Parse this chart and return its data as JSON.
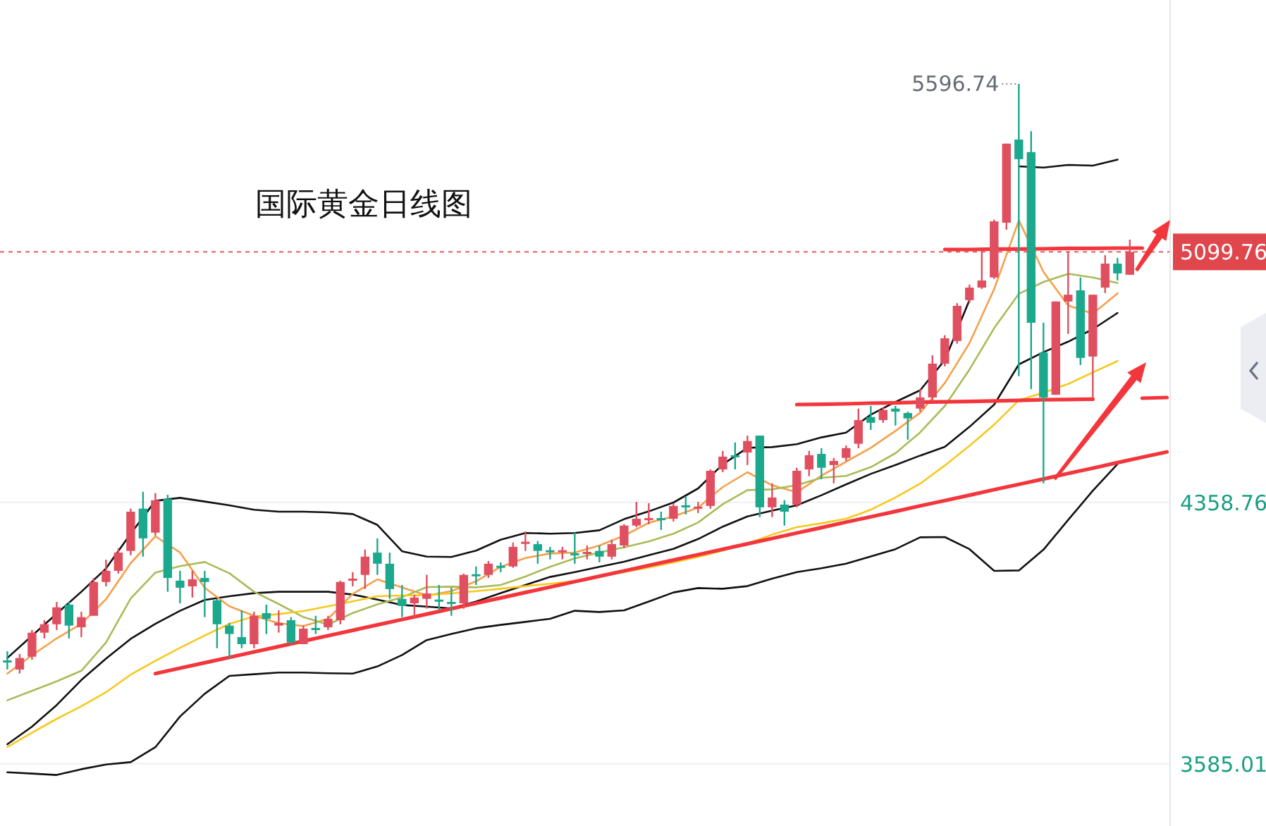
{
  "chart_data": [
    {
      "type": "candlestick",
      "title": "国际黄金日线图",
      "ylim": [
        3401,
        5845
      ],
      "yticks": [
        3585.01,
        4358.76
      ],
      "tick_labels": "y",
      "grid": "y",
      "categories": [
        null,
        null,
        null,
        null,
        null,
        null,
        null,
        null,
        null,
        null,
        null,
        null,
        null,
        null,
        null,
        null,
        null,
        null,
        null,
        null,
        null,
        null,
        null,
        null,
        null,
        null,
        null,
        null,
        null,
        null,
        null,
        null,
        null,
        null,
        null,
        null,
        null,
        null,
        null,
        null,
        null,
        null,
        null,
        null,
        null,
        null,
        null,
        null,
        null,
        null,
        null,
        null,
        null,
        null,
        null,
        null,
        null,
        null,
        null,
        null,
        null,
        null,
        null,
        null,
        null,
        null,
        null,
        null,
        null,
        null,
        null,
        null,
        null,
        null,
        null,
        null,
        null,
        null,
        null,
        null,
        null,
        null,
        null,
        null,
        null,
        null,
        null,
        null,
        null,
        null,
        null,
        null
      ],
      "ohlc": [
        [
          3891,
          3918,
          3864,
          3887
        ],
        [
          3864,
          3910,
          3852,
          3898
        ],
        [
          3902,
          3981,
          3893,
          3973
        ],
        [
          3973,
          4010,
          3956,
          3998
        ],
        [
          3998,
          4064,
          3981,
          4048
        ],
        [
          4056,
          4064,
          3956,
          3994
        ],
        [
          3989,
          4035,
          3960,
          4019
        ],
        [
          4023,
          4135,
          4023,
          4123
        ],
        [
          4123,
          4189,
          4110,
          4156
        ],
        [
          4156,
          4223,
          4148,
          4210
        ],
        [
          4215,
          4340,
          4202,
          4331
        ],
        [
          4340,
          4390,
          4198,
          4252
        ],
        [
          4269,
          4386,
          4260,
          4365
        ],
        [
          4369,
          4381,
          4094,
          4135
        ],
        [
          4127,
          4156,
          4060,
          4106
        ],
        [
          4110,
          4156,
          4077,
          4131
        ],
        [
          4135,
          4156,
          4019,
          4123
        ],
        [
          4069,
          4073,
          3927,
          3998
        ],
        [
          3994,
          4002,
          3898,
          3969
        ],
        [
          3960,
          4039,
          3927,
          3939
        ],
        [
          3939,
          4035,
          3927,
          4023
        ],
        [
          4031,
          4056,
          3969,
          4014
        ],
        [
          3994,
          4039,
          3973,
          4002
        ],
        [
          4010,
          4019,
          3939,
          3944
        ],
        [
          3939,
          3994,
          3939,
          3985
        ],
        [
          3987,
          4023,
          3969,
          3983
        ],
        [
          3989,
          4023,
          3981,
          4014
        ],
        [
          4010,
          4127,
          3998,
          4123
        ],
        [
          4129,
          4152,
          4110,
          4133
        ],
        [
          4144,
          4219,
          4102,
          4198
        ],
        [
          4210,
          4252,
          4144,
          4177
        ],
        [
          4177,
          4210,
          4073,
          4102
        ],
        [
          4073,
          4114,
          4019,
          4052
        ],
        [
          4060,
          4085,
          4019,
          4077
        ],
        [
          4073,
          4144,
          4044,
          4089
        ],
        [
          4071,
          4114,
          4039,
          4067
        ],
        [
          4064,
          4106,
          4023,
          4060
        ],
        [
          4060,
          4148,
          4044,
          4144
        ],
        [
          4146,
          4169,
          4114,
          4142
        ],
        [
          4144,
          4185,
          4135,
          4177
        ],
        [
          4171,
          4181,
          4152,
          4167
        ],
        [
          4169,
          4240,
          4165,
          4227
        ],
        [
          4238,
          4273,
          4215,
          4242
        ],
        [
          4235,
          4244,
          4177,
          4215
        ],
        [
          4217,
          4227,
          4190,
          4213
        ],
        [
          4213,
          4227,
          4190,
          4217
        ],
        [
          4208,
          4269,
          4177,
          4204
        ],
        [
          4208,
          4231,
          4190,
          4212
        ],
        [
          4215,
          4231,
          4181,
          4198
        ],
        [
          4198,
          4248,
          4190,
          4235
        ],
        [
          4231,
          4294,
          4223,
          4290
        ],
        [
          4290,
          4360,
          4285,
          4310
        ],
        [
          4308,
          4356,
          4294,
          4312
        ],
        [
          4312,
          4331,
          4277,
          4308
        ],
        [
          4310,
          4356,
          4302,
          4348
        ],
        [
          4350,
          4377,
          4323,
          4346
        ],
        [
          4342,
          4360,
          4327,
          4346
        ],
        [
          4348,
          4456,
          4340,
          4452
        ],
        [
          4456,
          4511,
          4448,
          4494
        ],
        [
          4498,
          4536,
          4456,
          4494
        ],
        [
          4506,
          4556,
          4469,
          4540
        ],
        [
          4556,
          4556,
          4315,
          4344
        ],
        [
          4344,
          4415,
          4315,
          4373
        ],
        [
          4352,
          4365,
          4290,
          4331
        ],
        [
          4352,
          4461,
          4344,
          4452
        ],
        [
          4456,
          4511,
          4436,
          4498
        ],
        [
          4502,
          4519,
          4427,
          4461
        ],
        [
          4469,
          4490,
          4415,
          4481
        ],
        [
          4490,
          4527,
          4481,
          4519
        ],
        [
          4532,
          4636,
          4519,
          4602
        ],
        [
          4611,
          4644,
          4573,
          4594
        ],
        [
          4602,
          4640,
          4594,
          4632
        ],
        [
          4636,
          4644,
          4586,
          4627
        ],
        [
          4623,
          4627,
          4544,
          4607
        ],
        [
          4636,
          4694,
          4627,
          4669
        ],
        [
          4669,
          4794,
          4657,
          4769
        ],
        [
          4769,
          4853,
          4761,
          4844
        ],
        [
          4836,
          4948,
          4828,
          4940
        ],
        [
          4957,
          5003,
          4948,
          4994
        ],
        [
          4994,
          5103,
          4990,
          5015
        ],
        [
          5024,
          5195,
          5020,
          5190
        ],
        [
          5186,
          5420,
          5165,
          5420
        ],
        [
          5432,
          5596.74,
          4732,
          5374
        ],
        [
          5395,
          5457,
          4694,
          4890
        ],
        [
          4802,
          4890,
          4415,
          4669
        ],
        [
          4677,
          4953,
          4677,
          4953
        ],
        [
          4953,
          5099,
          4857,
          4973
        ],
        [
          4986,
          5024,
          4765,
          4786
        ],
        [
          4790,
          4973,
          4669,
          4973
        ],
        [
          4994,
          5090,
          4978,
          5065
        ],
        [
          5065,
          5082,
          5015,
          5036
        ],
        [
          5032,
          5136,
          5032,
          5099.76
        ]
      ],
      "colors": [
        "#1ca88c",
        "#e04f5f",
        "#e04f5f",
        "#e04f5f",
        "#e04f5f",
        "#1ca88c",
        "#e04f5f",
        "#e04f5f",
        "#e04f5f",
        "#e04f5f",
        "#e04f5f",
        "#1ca88c",
        "#e04f5f",
        "#1ca88c",
        "#1ca88c",
        "#e04f5f",
        "#1ca88c",
        "#1ca88c",
        "#1ca88c",
        "#1ca88c",
        "#e04f5f",
        "#1ca88c",
        "#e04f5f",
        "#1ca88c",
        "#e04f5f",
        "#1ca88c",
        "#e04f5f",
        "#e04f5f",
        "#e04f5f",
        "#e04f5f",
        "#1ca88c",
        "#1ca88c",
        "#1ca88c",
        "#e04f5f",
        "#e04f5f",
        "#1ca88c",
        "#1ca88c",
        "#e04f5f",
        "#1ca88c",
        "#e04f5f",
        "#1ca88c",
        "#e04f5f",
        "#e04f5f",
        "#1ca88c",
        "#1ca88c",
        "#e04f5f",
        "#1ca88c",
        "#e04f5f",
        "#1ca88c",
        "#e04f5f",
        "#e04f5f",
        "#e04f5f",
        "#e04f5f",
        "#1ca88c",
        "#e04f5f",
        "#1ca88c",
        "#e04f5f",
        "#e04f5f",
        "#e04f5f",
        "#1ca88c",
        "#e04f5f",
        "#1ca88c",
        "#e04f5f",
        "#1ca88c",
        "#e04f5f",
        "#e04f5f",
        "#1ca88c",
        "#e04f5f",
        "#e04f5f",
        "#e04f5f",
        "#1ca88c",
        "#e04f5f",
        "#1ca88c",
        "#1ca88c",
        "#e04f5f",
        "#e04f5f",
        "#e04f5f",
        "#e04f5f",
        "#e04f5f",
        "#e04f5f",
        "#e04f5f",
        "#e04f5f",
        "#1ca88c",
        "#1ca88c",
        "#1ca88c",
        "#e04f5f",
        "#e04f5f",
        "#1ca88c",
        "#e04f5f",
        "#e04f5f",
        "#1ca88c",
        "#e04f5f"
      ],
      "ref_lines": [
        {
          "axis": "y",
          "value": 5099.76,
          "label": "5099.76",
          "color": "#e0474c",
          "line_style": "dashed"
        }
      ],
      "annotations": [
        "5596.74"
      ]
    },
    {
      "type": "line",
      "ylim": [
        3401,
        5845
      ],
      "tick_labels": false,
      "categories": [
        null,
        null,
        null,
        null,
        null,
        null,
        null,
        null,
        null,
        null,
        null,
        null,
        null,
        null,
        null,
        null,
        null,
        null,
        null,
        null,
        null,
        null,
        null,
        null,
        null,
        null,
        null,
        null,
        null,
        null,
        null,
        null,
        null,
        null,
        null,
        null,
        null,
        null,
        null,
        null,
        null,
        null,
        null,
        null,
        null,
        null,
        null,
        null
      ],
      "series": [
        {
          "color": "#111111",
          "values": [
            3898,
            3964,
            4029,
            4094,
            4163,
            4266,
            4363,
            4372,
            4361,
            4350,
            4337,
            4331,
            4331,
            4329,
            4324,
            4292,
            4214,
            4198,
            4197,
            4216,
            4248,
            4268,
            4266,
            4268,
            4276,
            4309,
            4332,
            4358,
            4400,
            4471,
            4520,
            4522,
            4531,
            4551,
            4565,
            4618,
            4656,
            4690,
            4780,
            4958,
            null,
            5353,
            5349,
            5357,
            5355,
            5373,
            null,
            null
          ]
        },
        {
          "color": "#111111",
          "values": [
            3643,
            3695,
            3759,
            3833,
            3896,
            3955,
            3999,
            4038,
            4070,
            4081,
            4090,
            4094,
            4094,
            4094,
            4086,
            4071,
            4055,
            4050,
            4045,
            4065,
            4090,
            4114,
            4138,
            4152,
            4168,
            4183,
            4202,
            4221,
            4250,
            4287,
            4317,
            4334,
            4350,
            4380,
            4412,
            4443,
            4469,
            4497,
            4523,
            4582,
            4648,
            4767,
            4803,
            4834,
            4871,
            4919,
            null,
            null
          ]
        },
        {
          "color": "#111111",
          "values": [
            3560,
            3556,
            3552,
            3569,
            3583,
            3590,
            3634,
            3725,
            3792,
            3845,
            3850,
            3855,
            3855,
            3853,
            3852,
            3873,
            3907,
            3951,
            3969,
            3986,
            3996,
            4005,
            4014,
            4038,
            4034,
            4039,
            4065,
            4092,
            4105,
            4103,
            4111,
            4133,
            4152,
            4164,
            4177,
            4199,
            4220,
            4255,
            4256,
            4220,
            4156,
            4157,
            4219,
            4307,
            4393,
            4472,
            null,
            null
          ]
        },
        {
          "color": "#f5a04a",
          "values": [
            3852,
            3906,
            3956,
            3999,
            4072,
            4179,
            4258,
            4210,
            4106,
            4051,
            4023,
            4001,
            3993,
            4014,
            4088,
            4131,
            4107,
            4083,
            4096,
            4125,
            4168,
            4194,
            4207,
            4210,
            4231,
            4260,
            4298,
            4317,
            4343,
            4404,
            4448,
            4409,
            4388,
            4438,
            4479,
            4520,
            4570,
            4624,
            4712,
            4830,
            4990,
            5193,
            5040,
            4941,
            4917,
            4977,
            null,
            null
          ]
        },
        {
          "color": "#a8bc58",
          "values": [
            3773,
            3801,
            3829,
            3860,
            3944,
            4074,
            4151,
            4170,
            4182,
            4149,
            4094,
            4058,
            4019,
            3997,
            4031,
            4057,
            4078,
            4108,
            4109,
            4107,
            4114,
            4139,
            4168,
            4193,
            4210,
            4226,
            4243,
            4266,
            4299,
            4353,
            4395,
            4397,
            4410,
            4431,
            4437,
            4463,
            4504,
            4566,
            4644,
            4752,
            4874,
            4976,
            5011,
            5035,
            5024,
            5008,
            null,
            null
          ]
        },
        {
          "color": "#f7c81e",
          "values": [
            3635,
            3677,
            3718,
            3755,
            3797,
            3849,
            3890,
            3928,
            3965,
            3999,
            4021,
            4028,
            4037,
            4051,
            4066,
            4081,
            4083,
            4084,
            4089,
            4096,
            4103,
            4111,
            4118,
            4126,
            4139,
            4152,
            4166,
            4181,
            4197,
            4216,
            4237,
            4263,
            4285,
            4297,
            4310,
            4337,
            4373,
            4414,
            4468,
            4526,
            4589,
            4661,
            4683,
            4709,
            4743,
            4777,
            null,
            null
          ]
        },
        {
          "color": "#f2363c",
          "values": [
            null,
            null,
            null,
            null,
            null,
            null,
            3852,
            3868,
            3884,
            3900,
            3916,
            3932,
            3948,
            3964,
            3980,
            3996,
            4012,
            4028,
            4044,
            4060,
            4076,
            4092,
            4108,
            4124,
            4140,
            4156,
            4172,
            4188,
            4204,
            4220,
            4236,
            4252,
            4268,
            4284,
            4300,
            4316,
            4332,
            4348,
            4364,
            4380,
            4396,
            4412,
            4428,
            4444,
            4460,
            4476,
            4492,
            4508
          ]
        },
        {
          "color": "#f2363c",
          "values": [
            null,
            null,
            null,
            null,
            null,
            null,
            null,
            null,
            null,
            null,
            null,
            null,
            null,
            null,
            null,
            null,
            null,
            null,
            null,
            null,
            null,
            null,
            null,
            null,
            null,
            null,
            null,
            null,
            null,
            null,
            null,
            null,
            4648,
            4649,
            4650,
            4652,
            4653,
            4655,
            4656,
            4657,
            4659,
            4660,
            4662,
            4663,
            4664,
            null,
            4667,
            4669
          ]
        },
        {
          "color": "#f2363c",
          "values": [
            null,
            null,
            null,
            null,
            null,
            null,
            null,
            null,
            null,
            null,
            null,
            null,
            null,
            null,
            null,
            null,
            null,
            null,
            null,
            null,
            null,
            null,
            null,
            null,
            null,
            null,
            null,
            null,
            null,
            null,
            null,
            null,
            null,
            null,
            null,
            null,
            null,
            null,
            5107,
            5107,
            5108,
            5108,
            5109,
            5110,
            5110,
            5111,
            5111,
            null
          ]
        }
      ]
    }
  ]
}
